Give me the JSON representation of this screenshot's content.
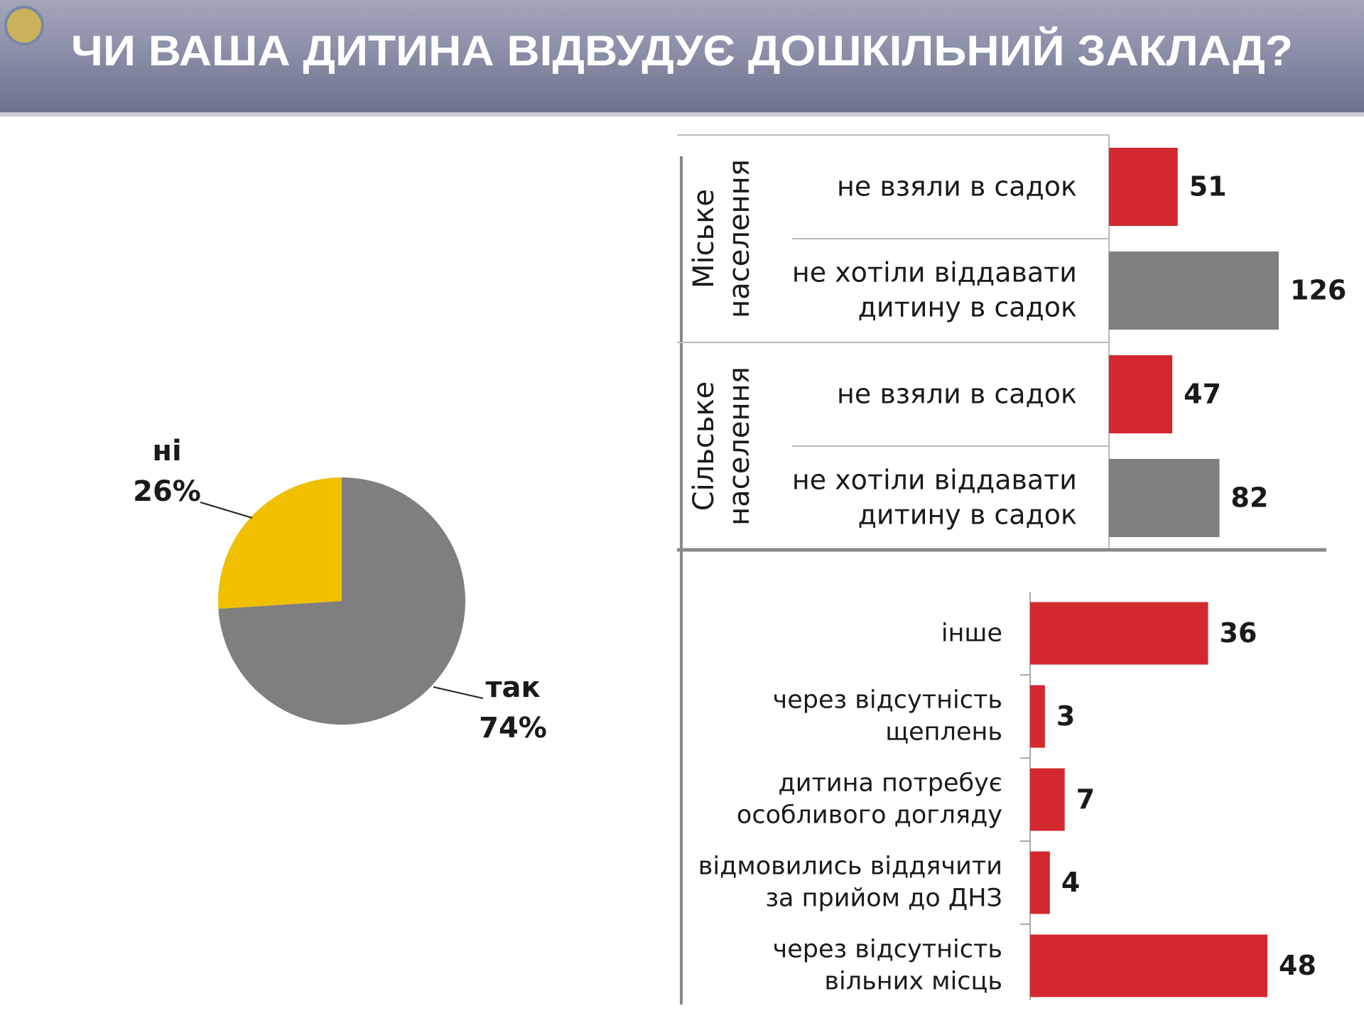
{
  "header": {
    "title": "ЧИ ВАША ДИТИНА ВІДВУДУЄ ДОШКІЛЬНИЙ ЗАКЛАД?"
  },
  "chart_data": [
    {
      "type": "pie",
      "categories": [
        "так",
        "ні"
      ],
      "values": [
        74,
        26
      ],
      "value_labels": [
        "74%",
        "26%"
      ],
      "colors": [
        "#7f7f7f",
        "#f0c000"
      ]
    },
    {
      "type": "bar",
      "groups": [
        {
          "label": "Міське\nнаселення",
          "categories": [
            "не взяли в садок",
            "не хотіли віддавати\nдитину в садок"
          ],
          "values": [
            51,
            126
          ],
          "colors": [
            "#d3282f",
            "#7f7f7f"
          ]
        },
        {
          "label": "Сільське\nнаселення",
          "categories": [
            "не взяли в садок",
            "не хотіли віддавати\nдитину в садок"
          ],
          "values": [
            47,
            82
          ],
          "colors": [
            "#d3282f",
            "#7f7f7f"
          ]
        }
      ]
    },
    {
      "type": "bar",
      "categories": [
        "інше",
        "через відсутність\nщеплень",
        "дитина потребує\nособливого догляду",
        "відмовились віддячити\nза прийом до ДНЗ",
        "через відсутність\nвільних місць"
      ],
      "values": [
        36,
        3,
        7,
        4,
        48
      ],
      "color": "#d3282f"
    }
  ]
}
